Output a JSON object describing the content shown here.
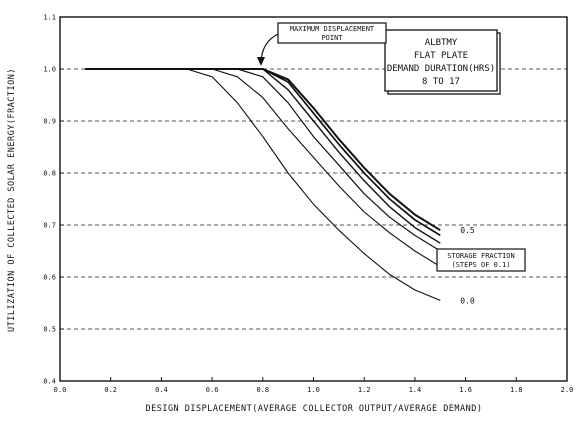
{
  "chart_data": {
    "type": "line",
    "title": "",
    "xlabel": "DESIGN DISPLACEMENT(AVERAGE COLLECTOR OUTPUT/AVERAGE DEMAND)",
    "ylabel": "UTILIZATION OF COLLECTED SOLAR ENERGY(FRACTION)",
    "xlim": [
      0.0,
      2.0
    ],
    "ylim": [
      0.4,
      1.1
    ],
    "xticks": [
      "0.0",
      "0.2",
      "0.4",
      "0.6",
      "0.8",
      "1.0",
      "1.2",
      "1.4",
      "1.6",
      "1.8",
      "2.0"
    ],
    "yticks": [
      "0.4",
      "0.5",
      "0.6",
      "0.7",
      "0.8",
      "0.9",
      "1.0",
      "1.1"
    ],
    "grid": "horizontal-dashed",
    "legend_box": [
      "ALBTMY",
      "FLAT PLATE",
      "DEMAND DURATION(HRS)",
      "8 TO 17"
    ],
    "annotations": {
      "max_point": [
        "MAXIMUM DISPLACEMENT",
        "POINT"
      ],
      "storage": [
        "STORAGE FRACTION",
        "(STEPS OF 0.1)"
      ]
    },
    "series": [
      {
        "name": "0.0",
        "x": [
          0.1,
          0.5,
          0.6,
          0.7,
          0.8,
          0.9,
          1.0,
          1.1,
          1.2,
          1.3,
          1.4,
          1.5
        ],
        "y": [
          1.0,
          1.0,
          0.985,
          0.935,
          0.87,
          0.8,
          0.74,
          0.69,
          0.645,
          0.605,
          0.575,
          0.555
        ]
      },
      {
        "name": "",
        "x": [
          0.1,
          0.6,
          0.7,
          0.8,
          0.9,
          1.0,
          1.1,
          1.2,
          1.3,
          1.4,
          1.5
        ],
        "y": [
          1.0,
          1.0,
          0.985,
          0.945,
          0.885,
          0.83,
          0.775,
          0.725,
          0.685,
          0.65,
          0.62
        ]
      },
      {
        "name": "",
        "x": [
          0.1,
          0.7,
          0.8,
          0.9,
          1.0,
          1.1,
          1.2,
          1.3,
          1.4,
          1.5
        ],
        "y": [
          1.0,
          1.0,
          0.985,
          0.935,
          0.87,
          0.815,
          0.76,
          0.715,
          0.68,
          0.65
        ]
      },
      {
        "name": "",
        "x": [
          0.1,
          0.8,
          0.9,
          1.0,
          1.1,
          1.2,
          1.3,
          1.4,
          1.5
        ],
        "y": [
          1.0,
          1.0,
          0.96,
          0.9,
          0.84,
          0.785,
          0.735,
          0.695,
          0.665
        ]
      },
      {
        "name": "",
        "x": [
          0.1,
          0.8,
          0.9,
          1.0,
          1.1,
          1.2,
          1.3,
          1.4,
          1.5
        ],
        "y": [
          1.0,
          1.0,
          0.975,
          0.915,
          0.855,
          0.8,
          0.75,
          0.71,
          0.68
        ]
      },
      {
        "name": "0.5",
        "x": [
          0.1,
          0.8,
          0.9,
          1.0,
          1.1,
          1.2,
          1.3,
          1.4,
          1.5
        ],
        "y": [
          1.0,
          1.0,
          0.98,
          0.925,
          0.865,
          0.81,
          0.76,
          0.72,
          0.69
        ]
      }
    ]
  }
}
